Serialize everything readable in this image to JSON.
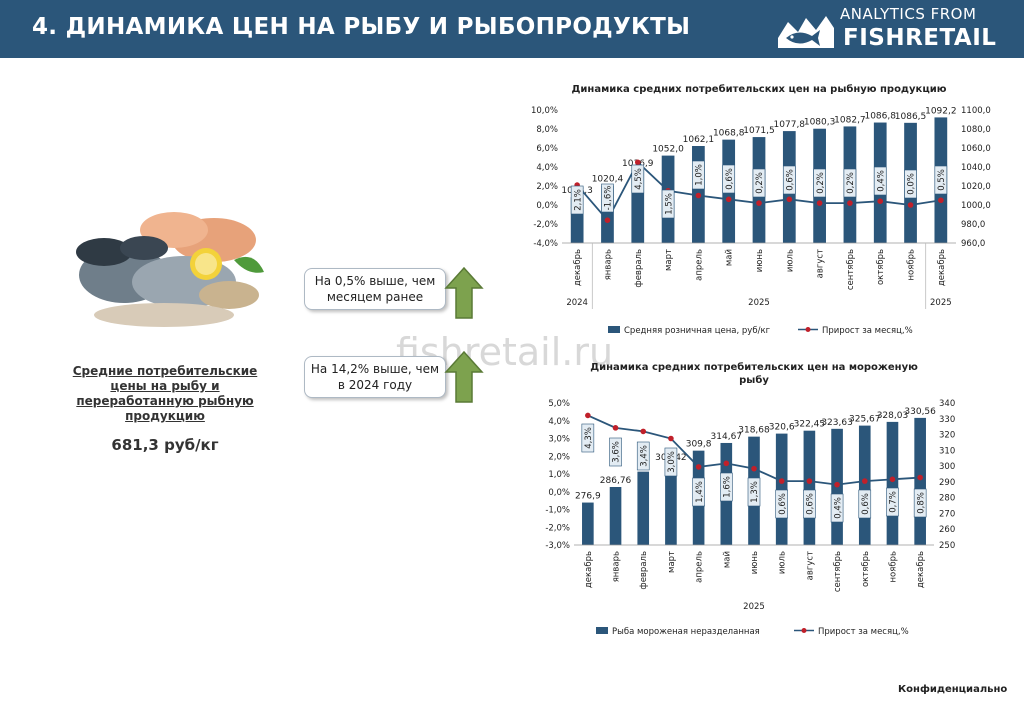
{
  "header": {
    "title": "4. ДИНАМИКА ЦЕН НА РЫБУ И РЫБОПРОДУКТЫ",
    "logo_line1": "ANALYTICS FROM",
    "logo_line2": "FISHRETAIL",
    "background": "#2b567a"
  },
  "watermark": "fishretail.ru",
  "left_panel": {
    "title": "Средние потребительские цены на рыбу и переработанную рыбную продукцию",
    "value": "681,3 руб/кг"
  },
  "callouts": [
    {
      "text": "На 0,5% выше, чем месяцем ранее",
      "icon": "up-arrow-icon"
    },
    {
      "text": "На 14,2% выше, чем в 2024 году",
      "icon": "up-arrow-icon"
    }
  ],
  "footer": "Конфиденциально",
  "chart_data": [
    {
      "type": "bar+line",
      "title": "Динамика  средних потребительских цен на рыбную продукцию",
      "categories": [
        "декабрь",
        "январь",
        "февраль",
        "март",
        "апрель",
        "май",
        "июнь",
        "июль",
        "август",
        "сентябрь",
        "октябрь",
        "ноябрь",
        "декабрь"
      ],
      "year_groups": [
        {
          "label": "2024",
          "from": 0,
          "to": 0
        },
        {
          "label": "2025",
          "from": 1,
          "to": 11
        },
        {
          "label": "2025",
          "from": 12,
          "to": 12
        }
      ],
      "series": [
        {
          "name": "Средняя розничная цена, руб/кг",
          "type": "bar",
          "axis": "right",
          "color": "#2b567a",
          "values": [
            1008.3,
            1020.4,
            1036.9,
            1052.0,
            1062.1,
            1068.8,
            1071.5,
            1077.8,
            1080.3,
            1082.7,
            1086.8,
            1086.5,
            1092.2
          ],
          "labels": [
            "1008,3",
            "1020,4",
            "1036,9",
            "1052,0",
            "1062,1",
            "1068,8",
            "1071,5",
            "1077,8",
            "1080,3",
            "1082,7",
            "1086,8",
            "1086,5",
            "1092,2"
          ]
        },
        {
          "name": "Прирост за месяц,%",
          "type": "line",
          "axis": "left",
          "color": "#2b567a",
          "marker_color": "#c0202a",
          "values": [
            2.1,
            -1.6,
            4.5,
            1.5,
            1.0,
            0.6,
            0.2,
            0.6,
            0.2,
            0.2,
            0.4,
            0.0,
            0.5
          ],
          "labels": [
            "2,1%",
            "-1,6%",
            "4,5%",
            "1,5%",
            "1,0%",
            "0,6%",
            "0,2%",
            "0,6%",
            "0,2%",
            "0,2%",
            "0,4%",
            "0,0%",
            "0,5%"
          ]
        }
      ],
      "left_axis": {
        "min": -4,
        "max": 10,
        "ticks": [
          "-4,0%",
          "-2,0%",
          "0,0%",
          "2,0%",
          "4,0%",
          "6,0%",
          "8,0%",
          "10,0%"
        ]
      },
      "right_axis": {
        "min": 960,
        "max": 1100,
        "ticks": [
          "960,0",
          "980,0",
          "1000,0",
          "1020,0",
          "1040,0",
          "1060,0",
          "1080,0",
          "1100,0"
        ]
      },
      "legend_position": "bottom"
    },
    {
      "type": "bar+line",
      "title": "Динамика  средних потребительских цен на мороженую рыбу",
      "categories": [
        "декабрь",
        "январь",
        "февраль",
        "март",
        "апрель",
        "май",
        "июнь",
        "июль",
        "август",
        "сентябрь",
        "октябрь",
        "ноябрь",
        "декабрь"
      ],
      "year_groups": [
        {
          "label": "2025",
          "from": 0,
          "to": 12
        }
      ],
      "series": [
        {
          "name": "Рыба мороженая неразделанная",
          "type": "bar",
          "axis": "right",
          "color": "#2b567a",
          "values": [
            276.9,
            286.76,
            296.5,
            301.42,
            309.8,
            314.67,
            318.68,
            320.6,
            322.45,
            323.63,
            325.67,
            328.03,
            330.56
          ],
          "labels": [
            "276,9",
            "286,76",
            "",
            "301,42",
            "309,8",
            "314,67",
            "318,68",
            "320,6",
            "322,45",
            "323,63",
            "325,67",
            "328,03",
            "330,56"
          ]
        },
        {
          "name": "Прирост за месяц,%",
          "type": "line",
          "axis": "left",
          "color": "#2b567a",
          "marker_color": "#c0202a",
          "values": [
            4.3,
            3.6,
            3.4,
            3.0,
            1.4,
            1.6,
            1.3,
            0.6,
            0.6,
            0.4,
            0.6,
            0.7,
            0.8
          ],
          "labels": [
            "4,3%",
            "3,6%",
            "3,4%",
            "3,0%",
            "1,4%",
            "1,6%",
            "1,3%",
            "0,6%",
            "0,6%",
            "0,4%",
            "0,6%",
            "0,7%",
            "0,8%"
          ]
        }
      ],
      "left_axis": {
        "min": -3,
        "max": 5,
        "ticks": [
          "-3,0%",
          "-2,0%",
          "-1,0%",
          "0,0%",
          "1,0%",
          "2,0%",
          "3,0%",
          "4,0%",
          "5,0%"
        ]
      },
      "right_axis": {
        "min": 250,
        "max": 340,
        "ticks": [
          "250",
          "260",
          "270",
          "280",
          "290",
          "300",
          "310",
          "320",
          "330",
          "340"
        ]
      },
      "legend_position": "bottom"
    }
  ]
}
